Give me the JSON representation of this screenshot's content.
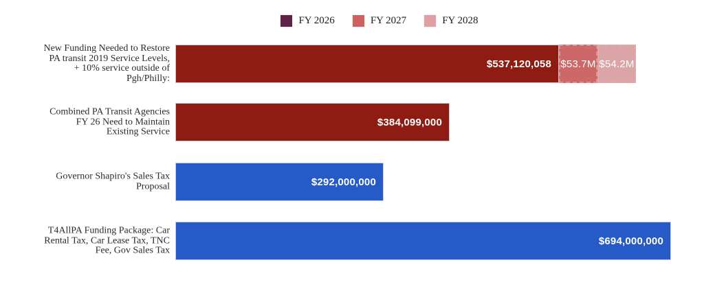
{
  "chart_data": {
    "type": "bar",
    "orientation": "horizontal",
    "title": "",
    "value_format": "USD",
    "value_axis_max": 694000000,
    "grid": false,
    "legend_position": "top-center",
    "series": [
      {
        "name": "FY 2026",
        "color": "#5f2144"
      },
      {
        "name": "FY 2027",
        "color": "#cf6161"
      },
      {
        "name": "FY 2028",
        "color": "#e0a0a3"
      }
    ],
    "bars": [
      {
        "category": "New Funding Needed to Restore PA transit 2019 Service Levels, + 10% service outside of Pgh/Philly:",
        "label_lines": [
          "New Funding Needed to Restore",
          "PA transit 2019 Service Levels,",
          "+ 10% service outside of",
          "Pgh/Philly:"
        ],
        "segments": [
          {
            "series": "FY 2026",
            "value": 537120058,
            "label": "$537,120,058",
            "color": "#8e1c12",
            "style": "solid"
          },
          {
            "series": "FY 2027",
            "value": 53700000,
            "label": "$53.7M",
            "color": "#cd6868",
            "style": "dashed",
            "border_color": "#e28f8f"
          },
          {
            "series": "FY 2028",
            "value": 54200000,
            "label": "$54.2M",
            "color": "#dba4a7",
            "style": "dashed",
            "border_color": "#e7a8a8"
          }
        ]
      },
      {
        "category": "Combined PA Transit Agencies FY 26 Need to Maintain Existing Service",
        "label_lines": [
          "Combined PA Transit Agencies",
          "FY 26 Need to Maintain",
          "Existing Service"
        ],
        "segments": [
          {
            "series": "FY 2026",
            "value": 384099000,
            "label": "$384,099,000",
            "color": "#8e1c12",
            "style": "solid"
          }
        ]
      },
      {
        "category": "Governor Shapiro's Sales Tax Proposal",
        "label_lines": [
          "Governor Shapiro's Sales Tax",
          "Proposal"
        ],
        "segments": [
          {
            "value": 292000000,
            "label": "$292,000,000",
            "color": "#265ac6",
            "style": "solid"
          }
        ]
      },
      {
        "category": "T4AllPA Funding Package: Car Rental Tax, Car Lease Tax, TNC Fee, Gov Sales Tax",
        "label_lines": [
          "T4AllPA Funding Package: Car",
          "Rental Tax, Car Lease Tax, TNC",
          "Fee, Gov Sales Tax"
        ],
        "segments": [
          {
            "value": 694000000,
            "label": "$694,000,000",
            "color": "#265ac6",
            "style": "solid"
          }
        ]
      }
    ]
  }
}
